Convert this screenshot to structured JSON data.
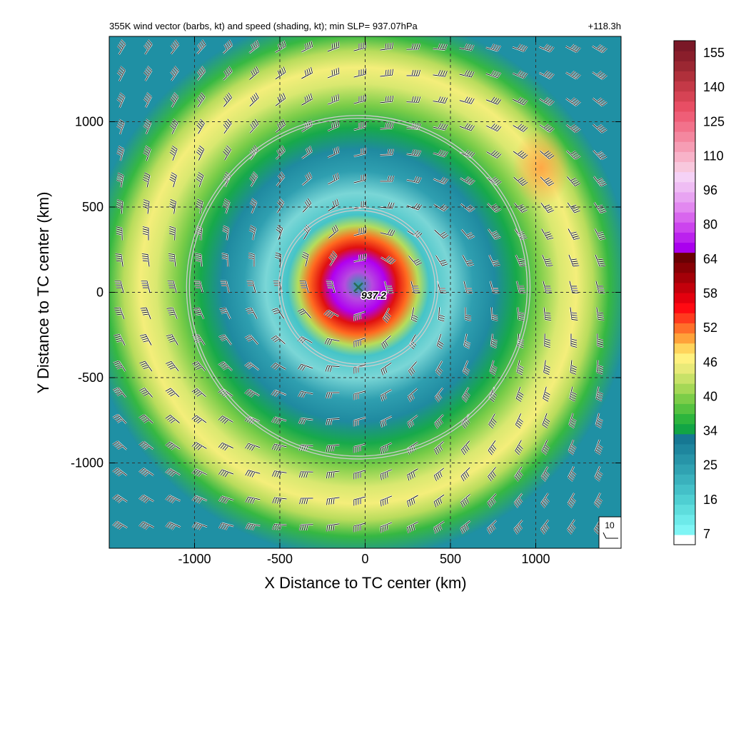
{
  "chart_data": {
    "type": "heatmap",
    "title": "355K wind vector (barbs, kt) and speed (shading, kt); min SLP= 937.07hPa",
    "time_label": "+118.3h",
    "xlabel": "X Distance to TC center (km)",
    "ylabel": "Y Distance to TC center (km)",
    "xlim": [
      -1500,
      1500
    ],
    "ylim": [
      -1500,
      1500
    ],
    "xticks": [
      -1000,
      -500,
      0,
      500,
      1000
    ],
    "yticks": [
      -1000,
      -500,
      0,
      500,
      1000
    ],
    "grid": "dashed",
    "center_marker_label": "937.2",
    "center_position_km": [
      -40,
      30
    ],
    "range_rings_km": [
      450,
      990
    ],
    "barb_reference_label": "10",
    "colorbar": {
      "tick_labels": [
        "7",
        "16",
        "25",
        "34",
        "40",
        "46",
        "52",
        "58",
        "64",
        "80",
        "96",
        "110",
        "125",
        "140",
        "155"
      ],
      "colors": [
        "#ffffff",
        "#7ff5f5",
        "#6deaea",
        "#5edddd",
        "#4fcfd2",
        "#44c0c8",
        "#3ab1bd",
        "#30a2b2",
        "#2794a8",
        "#1e869e",
        "#167893",
        "#12a545",
        "#2db53d",
        "#55c240",
        "#7ccd48",
        "#a5d856",
        "#c8e268",
        "#e8ea78",
        "#fff17f",
        "#ffd45c",
        "#ffa23a",
        "#ff6f2a",
        "#ff3a1e",
        "#ff0a12",
        "#e3000e",
        "#c3000b",
        "#a40008",
        "#870005",
        "#6a0003",
        "#aa00ee",
        "#bb22ee",
        "#cc44ee",
        "#d866ee",
        "#e288f0",
        "#e8a4f2",
        "#efbdf4",
        "#f5d2f6",
        "#f8c8dd",
        "#f8b3c9",
        "#f69db4",
        "#f4879f",
        "#f2728b",
        "#ef5e77",
        "#e84e64",
        "#d64354",
        "#c43947",
        "#b0303b",
        "#9b2732",
        "#8a1e2b",
        "#7a1827"
      ]
    },
    "speed_field_kt": [
      {
        "feature": "eyewall maximum (purple ring)",
        "radius_km": 80,
        "speed": 85
      },
      {
        "feature": "inner core (red)",
        "radius_km": 160,
        "speed": 58
      },
      {
        "feature": "inner moat (cyan)",
        "radius_km": 400,
        "speed": 22
      },
      {
        "feature": "outer wind maximum (yellow-green ring)",
        "radius_km": 1050,
        "speed": 42
      },
      {
        "feature": "NE quadrant orange maximum",
        "radius_km": 1050,
        "speed": 48
      },
      {
        "feature": "outer domain (teal)",
        "radius_km": 1450,
        "speed": 28
      }
    ]
  }
}
